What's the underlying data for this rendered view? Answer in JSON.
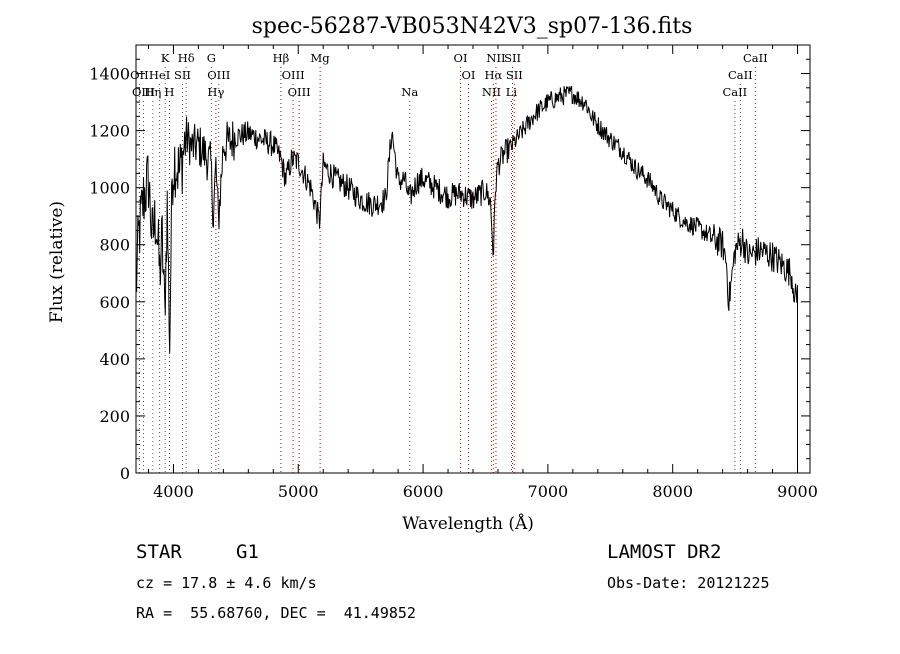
{
  "chart_data": {
    "type": "line",
    "title": "spec-56287-VB053N42V3_sp07-136.fits",
    "xlabel": "Wavelength (Å)",
    "ylabel": "Flux (relative)",
    "xlim": [
      3700,
      9100
    ],
    "ylim": [
      0,
      1500
    ],
    "x_ticks": [
      4000,
      5000,
      6000,
      7000,
      8000,
      9000
    ],
    "x_tick_labels": [
      "4000",
      "5000",
      "6000",
      "7000",
      "8000",
      "9000"
    ],
    "y_ticks": [
      0,
      200,
      400,
      600,
      800,
      1000,
      1200,
      1400
    ],
    "y_tick_labels": [
      "0",
      "200",
      "400",
      "600",
      "800",
      "1000",
      "1200",
      "1400"
    ],
    "grid": false,
    "line_color": "#000000",
    "marker_line_color": "#cc0000",
    "marker_line_color_alt": "#555555",
    "spectrum_anchors": {
      "x": [
        3700,
        3720,
        3760,
        3800,
        3830,
        3860,
        3890,
        3910,
        3930,
        3950,
        3970,
        3990,
        4010,
        4050,
        4100,
        4150,
        4200,
        4250,
        4300,
        4320,
        4340,
        4360,
        4400,
        4450,
        4500,
        4600,
        4700,
        4800,
        4860,
        4900,
        4950,
        5000,
        5100,
        5170,
        5200,
        5300,
        5400,
        5500,
        5600,
        5700,
        5750,
        5800,
        5850,
        5890,
        5950,
        6000,
        6100,
        6200,
        6300,
        6400,
        6500,
        6540,
        6563,
        6580,
        6600,
        6650,
        6700,
        6800,
        6900,
        7000,
        7100,
        7200,
        7250,
        7300,
        7350,
        7400,
        7500,
        7600,
        7700,
        7800,
        7850,
        7900,
        8000,
        8100,
        8200,
        8300,
        8400,
        8430,
        8450,
        8500,
        8560,
        8600,
        8700,
        8800,
        8900,
        8950,
        8990,
        9000
      ],
      "y": [
        640,
        820,
        960,
        1030,
        820,
        900,
        700,
        820,
        560,
        940,
        450,
        1050,
        1100,
        1050,
        1180,
        1140,
        1150,
        1120,
        1080,
        900,
        1080,
        880,
        1150,
        1160,
        1180,
        1190,
        1170,
        1150,
        1100,
        1030,
        1100,
        1090,
        1000,
        880,
        1080,
        1030,
        1000,
        960,
        940,
        960,
        1200,
        1020,
        1030,
        960,
        1020,
        1030,
        1000,
        970,
        980,
        960,
        990,
        950,
        760,
        1000,
        1080,
        1120,
        1140,
        1200,
        1260,
        1300,
        1320,
        1330,
        1310,
        1300,
        1250,
        1220,
        1170,
        1130,
        1070,
        1030,
        1000,
        960,
        920,
        880,
        860,
        830,
        800,
        740,
        600,
        780,
        820,
        760,
        780,
        760,
        720,
        700,
        600,
        640
      ]
    },
    "line_markers": [
      {
        "name": "Hδ",
        "x": 4102,
        "row": 0,
        "color": "#555555"
      },
      {
        "name": "K",
        "x": 3934,
        "row": 0,
        "color": "#555555"
      },
      {
        "name": "G",
        "x": 4304,
        "row": 0,
        "color": "#555555"
      },
      {
        "name": "Hβ",
        "x": 4861,
        "row": 0,
        "color": "#cc0000"
      },
      {
        "name": "Mg",
        "x": 5175,
        "row": 0,
        "color": "#cc0000"
      },
      {
        "name": "OI",
        "x": 6300,
        "row": 0,
        "color": "#cc0000"
      },
      {
        "name": "NII",
        "x": 6584,
        "row": 0,
        "color": "#cc0000"
      },
      {
        "name": "SII",
        "x": 6717,
        "row": 0,
        "color": "#cc0000"
      },
      {
        "name": "CaII",
        "x": 8662,
        "row": 0,
        "color": "#555555"
      },
      {
        "name": "OII",
        "x": 3727,
        "row": 1,
        "color": "#555555"
      },
      {
        "name": "HeI",
        "x": 3889,
        "row": 1,
        "color": "#555555"
      },
      {
        "name": "SII",
        "x": 4072,
        "row": 1,
        "color": "#555555"
      },
      {
        "name": "OIII",
        "x": 4363,
        "row": 1,
        "color": "#555555"
      },
      {
        "name": "OIII",
        "x": 4959,
        "row": 1,
        "color": "#cc0000"
      },
      {
        "name": "OI",
        "x": 6364,
        "row": 1,
        "color": "#cc0000"
      },
      {
        "name": "Hα",
        "x": 6563,
        "row": 1,
        "color": "#cc0000"
      },
      {
        "name": "SII",
        "x": 6731,
        "row": 1,
        "color": "#cc0000"
      },
      {
        "name": "CaII",
        "x": 8542,
        "row": 1,
        "color": "#555555"
      },
      {
        "name": "OIII",
        "x": 3760,
        "row": 2,
        "color": "#555555"
      },
      {
        "name": "Hη",
        "x": 3835,
        "row": 2,
        "color": "#555555"
      },
      {
        "name": "H",
        "x": 3968,
        "row": 2,
        "color": "#555555"
      },
      {
        "name": "Hγ",
        "x": 4340,
        "row": 2,
        "color": "#cc0000"
      },
      {
        "name": "OIII",
        "x": 5007,
        "row": 2,
        "color": "#cc0000"
      },
      {
        "name": "Na",
        "x": 5893,
        "row": 2,
        "color": "#555555"
      },
      {
        "name": "NII",
        "x": 6548,
        "row": 2,
        "color": "#cc0000"
      },
      {
        "name": "Li",
        "x": 6708,
        "row": 2,
        "color": "#cc0000"
      },
      {
        "name": "CaII",
        "x": 8498,
        "row": 2,
        "color": "#555555"
      }
    ]
  },
  "info": {
    "class_label": "STAR",
    "subclass_label": "G1",
    "survey": "LAMOST DR2",
    "cz_text": "cz = 17.8 ± 4.6 km/s",
    "obs_date_text": "Obs-Date: 20121225",
    "radec_text": "RA =  55.68760, DEC =  41.49852"
  }
}
